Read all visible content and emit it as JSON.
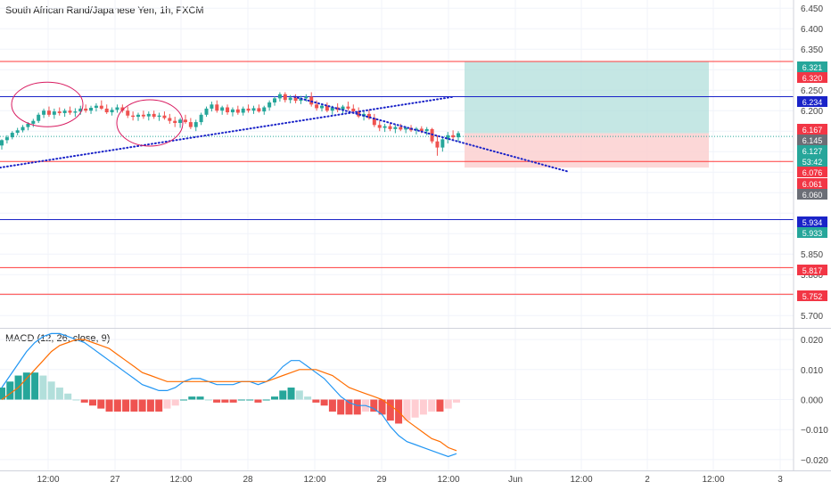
{
  "header": {
    "title": "South African Rand/Japanese Yen, 1h, FXCM"
  },
  "macd_header": {
    "title": "MACD (12, 26, close, 9)"
  },
  "colors": {
    "up": "#26a69a",
    "down": "#ef5350",
    "red_line": "#ff3b3b",
    "blue_line": "#1a23c8",
    "target_zone": "#b2dfdb",
    "stop_zone": "#fbd0d0",
    "macd_line": "#2196f3",
    "signal_line": "#ff6d00",
    "hist_up_strong": "#26a69a",
    "hist_up_weak": "#b2dfdb",
    "hist_down_strong": "#ef5350",
    "hist_down_weak": "#ffcdd2",
    "grid": "#f0f3fa",
    "axis_text": "#444444"
  },
  "chart_data": [
    {
      "type": "candlestick",
      "title": "South African Rand/Japanese Yen, 1h, FXCM",
      "x_ticks": [
        "12:00",
        "27",
        "12:00",
        "28",
        "12:00",
        "29",
        "12:00",
        "Jun",
        "12:00",
        "2",
        "12:00",
        "3"
      ],
      "y_ticks": [
        "6.450",
        "6.400",
        "6.350",
        "6.250",
        "6.200",
        "5.850",
        "5.800",
        "5.700"
      ],
      "ylim": [
        5.67,
        6.47
      ],
      "x_range": [
        "2020-05-26 06:00",
        "2020-06-03 00:00"
      ],
      "horizontal_lines": [
        {
          "value": 6.32,
          "color": "red"
        },
        {
          "value": 6.234,
          "color": "blue"
        },
        {
          "value": 6.076,
          "color": "red"
        },
        {
          "value": 5.934,
          "color": "blue"
        },
        {
          "value": 5.817,
          "color": "red"
        },
        {
          "value": 5.752,
          "color": "red"
        }
      ],
      "price_labels": [
        {
          "text": "6.321",
          "kind": "green"
        },
        {
          "text": "6.320",
          "kind": "red"
        },
        {
          "text": "6.234",
          "kind": "blue"
        },
        {
          "text": "6.167",
          "kind": "red"
        },
        {
          "text": "6.145",
          "kind": "gray"
        },
        {
          "text": "6.127",
          "kind": "green"
        },
        {
          "text": "53:42",
          "kind": "green"
        },
        {
          "text": "6.076",
          "kind": "red"
        },
        {
          "text": "6.061",
          "kind": "red"
        },
        {
          "text": "6.060",
          "kind": "gray"
        },
        {
          "text": "5.934",
          "kind": "blue"
        },
        {
          "text": "5.933",
          "kind": "green"
        },
        {
          "text": "5.817",
          "kind": "red"
        },
        {
          "text": "5.752",
          "kind": "red"
        }
      ],
      "position": {
        "entry": 6.145,
        "target": 6.321,
        "stop": 6.061,
        "start": "2020-05-29 13:00",
        "end": "2020-06-02 12:00"
      },
      "trendlines": [
        {
          "from": [
            "2020-05-26 05:00",
            6.061
          ],
          "to": [
            "2020-05-29 13:00",
            6.234
          ],
          "style": "dotted-blue"
        },
        {
          "from": [
            "2020-05-28 06:00",
            6.234
          ],
          "to": [
            "2020-06-01 00:00",
            6.052
          ],
          "style": "dotted-blue"
        }
      ],
      "ellipses": [
        {
          "center": [
            "2020-05-26 15:00",
            6.215
          ]
        },
        {
          "center": [
            "2020-05-27 08:00",
            6.168
          ]
        }
      ],
      "candles": [
        [
          6.115,
          6.13,
          6.105,
          6.128
        ],
        [
          6.128,
          6.14,
          6.12,
          6.135
        ],
        [
          6.135,
          6.15,
          6.13,
          6.146
        ],
        [
          6.146,
          6.158,
          6.14,
          6.152
        ],
        [
          6.152,
          6.165,
          6.147,
          6.16
        ],
        [
          6.16,
          6.172,
          6.152,
          6.168
        ],
        [
          6.168,
          6.18,
          6.16,
          6.175
        ],
        [
          6.175,
          6.195,
          6.17,
          6.19
        ],
        [
          6.19,
          6.205,
          6.182,
          6.2
        ],
        [
          6.2,
          6.21,
          6.185,
          6.19
        ],
        [
          6.19,
          6.205,
          6.18,
          6.198
        ],
        [
          6.198,
          6.208,
          6.188,
          6.194
        ],
        [
          6.194,
          6.205,
          6.185,
          6.2
        ],
        [
          6.2,
          6.21,
          6.19,
          6.195
        ],
        [
          6.195,
          6.206,
          6.185,
          6.198
        ],
        [
          6.198,
          6.212,
          6.19,
          6.205
        ],
        [
          6.205,
          6.215,
          6.195,
          6.2
        ],
        [
          6.2,
          6.212,
          6.192,
          6.207
        ],
        [
          6.207,
          6.218,
          6.198,
          6.212
        ],
        [
          6.212,
          6.225,
          6.202,
          6.205
        ],
        [
          6.205,
          6.215,
          6.192,
          6.196
        ],
        [
          6.196,
          6.208,
          6.188,
          6.202
        ],
        [
          6.202,
          6.215,
          6.195,
          6.208
        ],
        [
          6.208,
          6.215,
          6.195,
          6.2
        ],
        [
          6.2,
          6.21,
          6.182,
          6.188
        ],
        [
          6.188,
          6.198,
          6.176,
          6.185
        ],
        [
          6.185,
          6.195,
          6.175,
          6.19
        ],
        [
          6.19,
          6.2,
          6.18,
          6.186
        ],
        [
          6.186,
          6.198,
          6.176,
          6.192
        ],
        [
          6.192,
          6.2,
          6.18,
          6.185
        ],
        [
          6.185,
          6.195,
          6.175,
          6.188
        ],
        [
          6.188,
          6.198,
          6.178,
          6.182
        ],
        [
          6.182,
          6.192,
          6.168,
          6.175
        ],
        [
          6.175,
          6.185,
          6.16,
          6.17
        ],
        [
          6.17,
          6.182,
          6.158,
          6.178
        ],
        [
          6.178,
          6.19,
          6.168,
          6.172
        ],
        [
          6.172,
          6.182,
          6.155,
          6.16
        ],
        [
          6.16,
          6.178,
          6.15,
          6.172
        ],
        [
          6.172,
          6.195,
          6.165,
          6.19
        ],
        [
          6.19,
          6.21,
          6.185,
          6.205
        ],
        [
          6.205,
          6.222,
          6.198,
          6.215
        ],
        [
          6.215,
          6.225,
          6.195,
          6.2
        ],
        [
          6.2,
          6.212,
          6.19,
          6.208
        ],
        [
          6.208,
          6.215,
          6.19,
          6.196
        ],
        [
          6.196,
          6.208,
          6.186,
          6.203
        ],
        [
          6.203,
          6.212,
          6.19,
          6.195
        ],
        [
          6.195,
          6.21,
          6.188,
          6.205
        ],
        [
          6.205,
          6.215,
          6.195,
          6.2
        ],
        [
          6.2,
          6.212,
          6.192,
          6.206
        ],
        [
          6.206,
          6.215,
          6.195,
          6.198
        ],
        [
          6.198,
          6.212,
          6.19,
          6.208
        ],
        [
          6.208,
          6.225,
          6.2,
          6.22
        ],
        [
          6.22,
          6.235,
          6.212,
          6.23
        ],
        [
          6.23,
          6.245,
          6.222,
          6.24
        ],
        [
          6.24,
          6.245,
          6.22,
          6.226
        ],
        [
          6.226,
          6.238,
          6.218,
          6.232
        ],
        [
          6.232,
          6.24,
          6.218,
          6.224
        ],
        [
          6.224,
          6.236,
          6.216,
          6.23
        ],
        [
          6.23,
          6.24,
          6.222,
          6.234
        ],
        [
          6.234,
          6.245,
          6.21,
          6.215
        ],
        [
          6.215,
          6.225,
          6.2,
          6.206
        ],
        [
          6.206,
          6.218,
          6.198,
          6.212
        ],
        [
          6.212,
          6.22,
          6.196,
          6.2
        ],
        [
          6.2,
          6.212,
          6.19,
          6.208
        ],
        [
          6.208,
          6.218,
          6.196,
          6.202
        ],
        [
          6.202,
          6.214,
          6.192,
          6.21
        ],
        [
          6.21,
          6.222,
          6.2,
          6.205
        ],
        [
          6.205,
          6.215,
          6.192,
          6.198
        ],
        [
          6.198,
          6.208,
          6.182,
          6.186
        ],
        [
          6.186,
          6.198,
          6.176,
          6.192
        ],
        [
          6.192,
          6.202,
          6.178,
          6.182
        ],
        [
          6.182,
          6.192,
          6.16,
          6.165
        ],
        [
          6.165,
          6.175,
          6.15,
          6.158
        ],
        [
          6.158,
          6.168,
          6.148,
          6.162
        ],
        [
          6.162,
          6.17,
          6.15,
          6.155
        ],
        [
          6.155,
          6.165,
          6.145,
          6.16
        ],
        [
          6.16,
          6.168,
          6.15,
          6.154
        ],
        [
          6.154,
          6.162,
          6.145,
          6.158
        ],
        [
          6.158,
          6.165,
          6.148,
          6.152
        ],
        [
          6.152,
          6.16,
          6.142,
          6.156
        ],
        [
          6.156,
          6.162,
          6.145,
          6.15
        ],
        [
          6.15,
          6.16,
          6.14,
          6.155
        ],
        [
          6.155,
          6.158,
          6.12,
          6.125
        ],
        [
          6.125,
          6.14,
          6.09,
          6.11
        ],
        [
          6.11,
          6.135,
          6.1,
          6.13
        ],
        [
          6.13,
          6.148,
          6.12,
          6.14
        ],
        [
          6.14,
          6.152,
          6.128,
          6.135
        ],
        [
          6.135,
          6.15,
          6.125,
          6.145
        ]
      ]
    },
    {
      "type": "line",
      "title": "MACD (12, 26, close, 9)",
      "y_ticks": [
        "0.020",
        "0.010",
        "0.000",
        "−0.010",
        "−0.020"
      ],
      "ylim": [
        -0.023,
        0.023
      ],
      "series": [
        {
          "name": "MACD",
          "values": [
            0.004,
            0.008,
            0.012,
            0.016,
            0.019,
            0.021,
            0.022,
            0.022,
            0.021,
            0.02,
            0.019,
            0.017,
            0.015,
            0.013,
            0.011,
            0.009,
            0.007,
            0.005,
            0.004,
            0.003,
            0.003,
            0.004,
            0.006,
            0.007,
            0.007,
            0.006,
            0.005,
            0.005,
            0.005,
            0.006,
            0.006,
            0.005,
            0.006,
            0.008,
            0.011,
            0.013,
            0.013,
            0.011,
            0.009,
            0.007,
            0.004,
            0.001,
            -0.001,
            -0.002,
            -0.002,
            -0.003,
            -0.005,
            -0.009,
            -0.012,
            -0.014,
            -0.015,
            -0.016,
            -0.017,
            -0.018,
            -0.019,
            -0.018
          ]
        },
        {
          "name": "Signal",
          "values": [
            0.0,
            0.002,
            0.004,
            0.007,
            0.01,
            0.013,
            0.016,
            0.018,
            0.019,
            0.02,
            0.02,
            0.019,
            0.018,
            0.017,
            0.015,
            0.013,
            0.011,
            0.009,
            0.008,
            0.007,
            0.006,
            0.006,
            0.006,
            0.006,
            0.006,
            0.006,
            0.006,
            0.006,
            0.006,
            0.006,
            0.006,
            0.006,
            0.006,
            0.007,
            0.008,
            0.009,
            0.01,
            0.01,
            0.01,
            0.009,
            0.008,
            0.006,
            0.004,
            0.003,
            0.002,
            0.001,
            0.0,
            -0.002,
            -0.004,
            -0.007,
            -0.009,
            -0.011,
            -0.013,
            -0.014,
            -0.016,
            -0.017
          ]
        }
      ],
      "histogram": [
        0.004,
        0.006,
        0.008,
        0.009,
        0.009,
        0.008,
        0.006,
        0.004,
        0.002,
        0.0,
        -0.001,
        -0.002,
        -0.003,
        -0.004,
        -0.004,
        -0.004,
        -0.004,
        -0.004,
        -0.004,
        -0.004,
        -0.003,
        -0.002,
        0.0,
        0.001,
        0.001,
        0.0,
        -0.001,
        -0.001,
        -0.001,
        0.0,
        0.0,
        -0.001,
        0.0,
        0.001,
        0.003,
        0.004,
        0.003,
        0.001,
        -0.001,
        -0.002,
        -0.004,
        -0.005,
        -0.005,
        -0.005,
        -0.004,
        -0.004,
        -0.005,
        -0.007,
        -0.008,
        -0.007,
        -0.006,
        -0.005,
        -0.004,
        -0.004,
        -0.003,
        -0.001
      ]
    }
  ]
}
